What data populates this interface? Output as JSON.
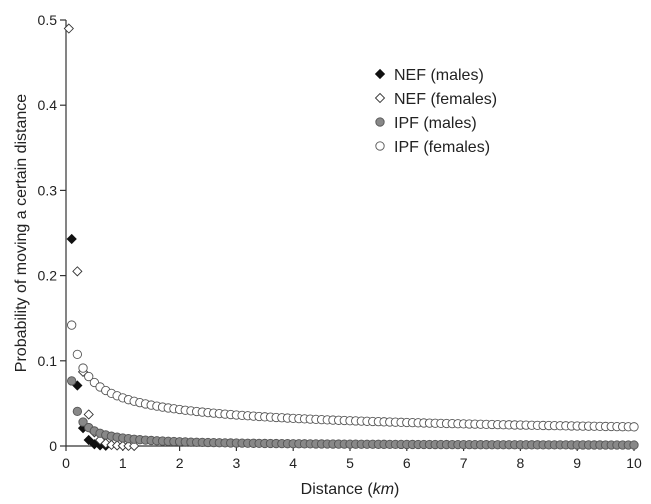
{
  "chart_data": {
    "type": "scatter",
    "title": "",
    "xlabel": "Distance (km)",
    "xlabel_plain": "Distance (",
    "xlabel_italic": "km",
    "xlabel_close": ")",
    "ylabel": "Probability of moving a certain distance",
    "xlim": [
      0,
      10
    ],
    "ylim": [
      0,
      0.5
    ],
    "xticks": [
      "0",
      "1",
      "2",
      "3",
      "4",
      "5",
      "6",
      "7",
      "8",
      "9",
      "10"
    ],
    "yticks": [
      "0",
      "0.1",
      "0.2",
      "0.3",
      "0.4",
      "0.5"
    ],
    "grid": false,
    "legend_position": "top-right",
    "series": [
      {
        "name": "NEF (males)",
        "marker": "diamond",
        "fill": "#111111",
        "stroke": "#111111",
        "points": [
          [
            0.1,
            0.243
          ],
          [
            0.2,
            0.071
          ],
          [
            0.3,
            0.021
          ],
          [
            0.4,
            0.007
          ],
          [
            0.5,
            0.002
          ],
          [
            0.6,
            0.0008
          ],
          [
            0.7,
            0.0003
          ]
        ]
      },
      {
        "name": "NEF (females)",
        "marker": "diamond",
        "fill": "#ffffff",
        "stroke": "#333333",
        "points": [
          [
            0.05,
            0.49
          ],
          [
            0.2,
            0.205
          ],
          [
            0.3,
            0.087
          ],
          [
            0.4,
            0.037
          ],
          [
            0.5,
            0.016
          ],
          [
            0.6,
            0.007
          ],
          [
            0.7,
            0.003
          ],
          [
            0.8,
            0.0013
          ],
          [
            0.9,
            0.0006
          ],
          [
            1.0,
            0.0003
          ],
          [
            1.1,
            0.0001
          ],
          [
            1.2,
            5e-05
          ]
        ]
      },
      {
        "name": "IPF (males)",
        "marker": "circle",
        "fill": "#888888",
        "stroke": "#555555",
        "a": 0.0094,
        "b": -0.91,
        "step": 0.1
      },
      {
        "name": "IPF (females)",
        "marker": "circle",
        "fill": "#ffffff",
        "stroke": "#555555",
        "a": 0.0565,
        "b": -0.4,
        "step": 0.1
      }
    ]
  }
}
